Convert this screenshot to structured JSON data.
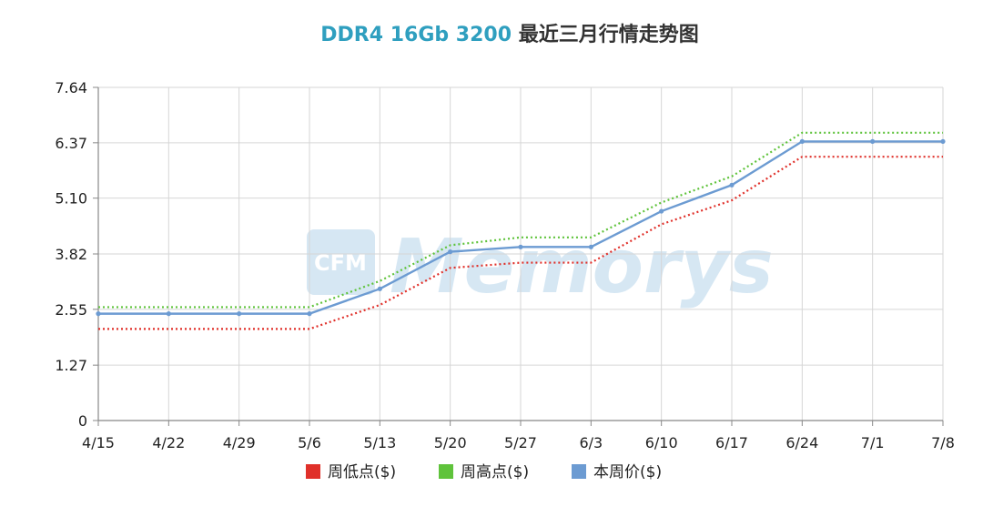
{
  "chart_data": {
    "type": "line",
    "title": {
      "accent_text": "DDR4 16Gb 3200",
      "rest_text": " 最近三月行情走势图"
    },
    "categories": [
      "4/15",
      "4/22",
      "4/29",
      "5/6",
      "5/13",
      "5/20",
      "5/27",
      "6/3",
      "6/10",
      "6/17",
      "6/24",
      "7/1",
      "7/8"
    ],
    "y_ticks": [
      "0",
      "1.27",
      "2.55",
      "3.82",
      "5.10",
      "6.37",
      "7.64"
    ],
    "ylim": [
      0,
      7.64
    ],
    "grid": true,
    "legend_position": "bottom",
    "series": [
      {
        "name": "周低点($)",
        "color": "#e0302a",
        "style": "dotted",
        "markers": false,
        "values": [
          2.1,
          2.1,
          2.1,
          2.1,
          2.65,
          3.5,
          3.62,
          3.62,
          4.5,
          5.05,
          6.05,
          6.05,
          6.05
        ]
      },
      {
        "name": "周高点($)",
        "color": "#5fc33b",
        "style": "dotted",
        "markers": false,
        "values": [
          2.6,
          2.6,
          2.6,
          2.6,
          3.2,
          4.02,
          4.2,
          4.2,
          5.0,
          5.6,
          6.6,
          6.6,
          6.6
        ]
      },
      {
        "name": "本周价($)",
        "color": "#6c9bd2",
        "style": "solid",
        "markers": true,
        "values": [
          2.45,
          2.45,
          2.45,
          2.45,
          3.02,
          3.87,
          3.98,
          3.98,
          4.8,
          5.4,
          6.4,
          6.4,
          6.4
        ]
      }
    ]
  },
  "colors": {
    "title_accent": "#2f9fbf",
    "title_rest": "#333333",
    "grid": "#d6d6d6",
    "axis": "#888888",
    "tick_text": "#222222",
    "watermark": "#cfe3f2"
  },
  "watermark": {
    "logo_text": "CFM",
    "word_text": "Memorys"
  }
}
